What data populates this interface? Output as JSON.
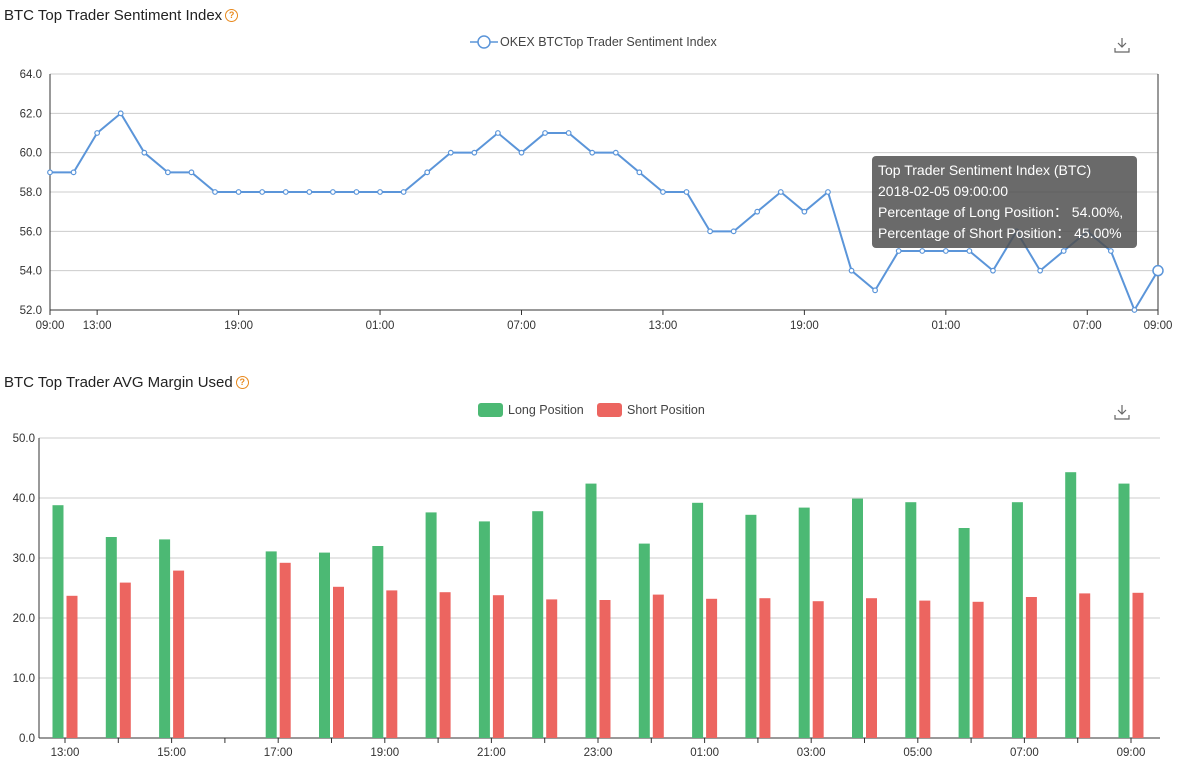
{
  "chart1": {
    "title": "BTC Top Trader Sentiment Index",
    "legend": "OKEX BTCTop Trader Sentiment Index",
    "tooltip": {
      "title": "Top Trader Sentiment Index (BTC)",
      "time": "2018-02-05 09:00:00",
      "long": "Percentage of Long Position： 54.00%,",
      "short": "Percentage of Short Position： 45.00%"
    }
  },
  "chart2": {
    "title": "BTC Top Trader AVG Margin Used",
    "legend_long": "Long Position",
    "legend_short": "Short Position"
  },
  "colors": {
    "line": "#5b95d9",
    "long": "#4cb974",
    "short": "#ec6560",
    "help": "#e8891d"
  },
  "icons": {
    "help": "question-circle-icon",
    "download": "download-icon"
  },
  "chart_data": [
    {
      "type": "line",
      "title": "BTC Top Trader Sentiment Index",
      "series": [
        {
          "name": "OKEX BTCTop Trader Sentiment Index",
          "values": [
            59,
            59,
            61,
            62,
            60,
            59,
            59,
            58,
            58,
            58,
            58,
            58,
            58,
            58,
            58,
            58,
            59,
            60,
            60,
            61,
            60,
            61,
            61,
            60,
            60,
            59,
            58,
            58,
            56,
            56,
            57,
            58,
            57,
            58,
            54,
            53,
            55,
            55,
            55,
            55,
            54,
            56,
            54,
            55,
            56,
            55,
            52,
            54
          ]
        }
      ],
      "x_tick_labels": [
        "09:00",
        "13:00",
        "19:00",
        "01:00",
        "07:00",
        "13:00",
        "19:00",
        "01:00",
        "07:00",
        "09:00"
      ],
      "ylim": [
        52,
        64
      ],
      "y_tick_labels": [
        "52.0",
        "54.0",
        "56.0",
        "58.0",
        "60.0",
        "62.0",
        "64.0"
      ],
      "grid": true,
      "legend_position": "top-center"
    },
    {
      "type": "bar",
      "title": "BTC Top Trader AVG Margin Used",
      "categories": [
        "13:00",
        "14:00",
        "15:00",
        "16:00",
        "17:00",
        "18:00",
        "19:00",
        "20:00",
        "21:00",
        "22:00",
        "23:00",
        "00:00",
        "01:00",
        "02:00",
        "03:00",
        "04:00",
        "05:00",
        "06:00",
        "07:00",
        "08:00",
        "09:00"
      ],
      "x_tick_labels": [
        "13:00",
        "15:00",
        "17:00",
        "19:00",
        "21:00",
        "23:00",
        "01:00",
        "03:00",
        "05:00",
        "07:00",
        "09:00"
      ],
      "series": [
        {
          "name": "Long Position",
          "values": [
            38.8,
            33.5,
            33.1,
            null,
            31.1,
            30.9,
            32.0,
            37.6,
            36.1,
            37.8,
            42.4,
            32.4,
            39.2,
            37.2,
            38.4,
            39.9,
            39.3,
            35.0,
            39.3,
            44.3,
            42.4
          ]
        },
        {
          "name": "Short Position",
          "values": [
            23.7,
            25.9,
            27.9,
            null,
            29.2,
            25.2,
            24.6,
            24.3,
            23.8,
            23.1,
            23.0,
            23.9,
            23.2,
            23.3,
            22.8,
            23.3,
            22.9,
            22.7,
            23.5,
            24.1,
            24.2
          ]
        }
      ],
      "ylim": [
        0,
        50
      ],
      "y_tick_labels": [
        "0.0",
        "10.0",
        "20.0",
        "30.0",
        "40.0",
        "50.0"
      ],
      "grid": true,
      "legend_position": "top-center"
    }
  ]
}
